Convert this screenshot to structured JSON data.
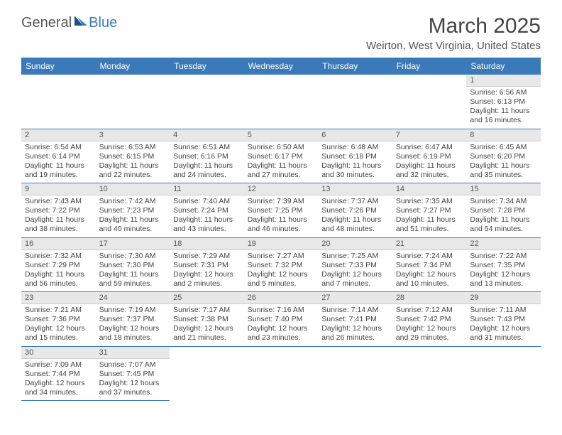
{
  "logo": {
    "text1": "General",
    "text2": "Blue"
  },
  "title": "March 2025",
  "location": "Weirton, West Virginia, United States",
  "colors": {
    "header_bg": "#3a7ab8",
    "header_text": "#ffffff",
    "daynum_bg": "#e8e8e8",
    "border": "#3a7ab8"
  },
  "weekdays": [
    "Sunday",
    "Monday",
    "Tuesday",
    "Wednesday",
    "Thursday",
    "Friday",
    "Saturday"
  ],
  "weeks": [
    [
      null,
      null,
      null,
      null,
      null,
      null,
      {
        "n": "1",
        "sr": "Sunrise: 6:56 AM",
        "ss": "Sunset: 6:13 PM",
        "dl": "Daylight: 11 hours and 16 minutes."
      }
    ],
    [
      {
        "n": "2",
        "sr": "Sunrise: 6:54 AM",
        "ss": "Sunset: 6:14 PM",
        "dl": "Daylight: 11 hours and 19 minutes."
      },
      {
        "n": "3",
        "sr": "Sunrise: 6:53 AM",
        "ss": "Sunset: 6:15 PM",
        "dl": "Daylight: 11 hours and 22 minutes."
      },
      {
        "n": "4",
        "sr": "Sunrise: 6:51 AM",
        "ss": "Sunset: 6:16 PM",
        "dl": "Daylight: 11 hours and 24 minutes."
      },
      {
        "n": "5",
        "sr": "Sunrise: 6:50 AM",
        "ss": "Sunset: 6:17 PM",
        "dl": "Daylight: 11 hours and 27 minutes."
      },
      {
        "n": "6",
        "sr": "Sunrise: 6:48 AM",
        "ss": "Sunset: 6:18 PM",
        "dl": "Daylight: 11 hours and 30 minutes."
      },
      {
        "n": "7",
        "sr": "Sunrise: 6:47 AM",
        "ss": "Sunset: 6:19 PM",
        "dl": "Daylight: 11 hours and 32 minutes."
      },
      {
        "n": "8",
        "sr": "Sunrise: 6:45 AM",
        "ss": "Sunset: 6:20 PM",
        "dl": "Daylight: 11 hours and 35 minutes."
      }
    ],
    [
      {
        "n": "9",
        "sr": "Sunrise: 7:43 AM",
        "ss": "Sunset: 7:22 PM",
        "dl": "Daylight: 11 hours and 38 minutes."
      },
      {
        "n": "10",
        "sr": "Sunrise: 7:42 AM",
        "ss": "Sunset: 7:23 PM",
        "dl": "Daylight: 11 hours and 40 minutes."
      },
      {
        "n": "11",
        "sr": "Sunrise: 7:40 AM",
        "ss": "Sunset: 7:24 PM",
        "dl": "Daylight: 11 hours and 43 minutes."
      },
      {
        "n": "12",
        "sr": "Sunrise: 7:39 AM",
        "ss": "Sunset: 7:25 PM",
        "dl": "Daylight: 11 hours and 46 minutes."
      },
      {
        "n": "13",
        "sr": "Sunrise: 7:37 AM",
        "ss": "Sunset: 7:26 PM",
        "dl": "Daylight: 11 hours and 48 minutes."
      },
      {
        "n": "14",
        "sr": "Sunrise: 7:35 AM",
        "ss": "Sunset: 7:27 PM",
        "dl": "Daylight: 11 hours and 51 minutes."
      },
      {
        "n": "15",
        "sr": "Sunrise: 7:34 AM",
        "ss": "Sunset: 7:28 PM",
        "dl": "Daylight: 11 hours and 54 minutes."
      }
    ],
    [
      {
        "n": "16",
        "sr": "Sunrise: 7:32 AM",
        "ss": "Sunset: 7:29 PM",
        "dl": "Daylight: 11 hours and 56 minutes."
      },
      {
        "n": "17",
        "sr": "Sunrise: 7:30 AM",
        "ss": "Sunset: 7:30 PM",
        "dl": "Daylight: 11 hours and 59 minutes."
      },
      {
        "n": "18",
        "sr": "Sunrise: 7:29 AM",
        "ss": "Sunset: 7:31 PM",
        "dl": "Daylight: 12 hours and 2 minutes."
      },
      {
        "n": "19",
        "sr": "Sunrise: 7:27 AM",
        "ss": "Sunset: 7:32 PM",
        "dl": "Daylight: 12 hours and 5 minutes."
      },
      {
        "n": "20",
        "sr": "Sunrise: 7:25 AM",
        "ss": "Sunset: 7:33 PM",
        "dl": "Daylight: 12 hours and 7 minutes."
      },
      {
        "n": "21",
        "sr": "Sunrise: 7:24 AM",
        "ss": "Sunset: 7:34 PM",
        "dl": "Daylight: 12 hours and 10 minutes."
      },
      {
        "n": "22",
        "sr": "Sunrise: 7:22 AM",
        "ss": "Sunset: 7:35 PM",
        "dl": "Daylight: 12 hours and 13 minutes."
      }
    ],
    [
      {
        "n": "23",
        "sr": "Sunrise: 7:21 AM",
        "ss": "Sunset: 7:36 PM",
        "dl": "Daylight: 12 hours and 15 minutes."
      },
      {
        "n": "24",
        "sr": "Sunrise: 7:19 AM",
        "ss": "Sunset: 7:37 PM",
        "dl": "Daylight: 12 hours and 18 minutes."
      },
      {
        "n": "25",
        "sr": "Sunrise: 7:17 AM",
        "ss": "Sunset: 7:38 PM",
        "dl": "Daylight: 12 hours and 21 minutes."
      },
      {
        "n": "26",
        "sr": "Sunrise: 7:16 AM",
        "ss": "Sunset: 7:40 PM",
        "dl": "Daylight: 12 hours and 23 minutes."
      },
      {
        "n": "27",
        "sr": "Sunrise: 7:14 AM",
        "ss": "Sunset: 7:41 PM",
        "dl": "Daylight: 12 hours and 26 minutes."
      },
      {
        "n": "28",
        "sr": "Sunrise: 7:12 AM",
        "ss": "Sunset: 7:42 PM",
        "dl": "Daylight: 12 hours and 29 minutes."
      },
      {
        "n": "29",
        "sr": "Sunrise: 7:11 AM",
        "ss": "Sunset: 7:43 PM",
        "dl": "Daylight: 12 hours and 31 minutes."
      }
    ],
    [
      {
        "n": "30",
        "sr": "Sunrise: 7:09 AM",
        "ss": "Sunset: 7:44 PM",
        "dl": "Daylight: 12 hours and 34 minutes."
      },
      {
        "n": "31",
        "sr": "Sunrise: 7:07 AM",
        "ss": "Sunset: 7:45 PM",
        "dl": "Daylight: 12 hours and 37 minutes."
      },
      null,
      null,
      null,
      null,
      null
    ]
  ]
}
